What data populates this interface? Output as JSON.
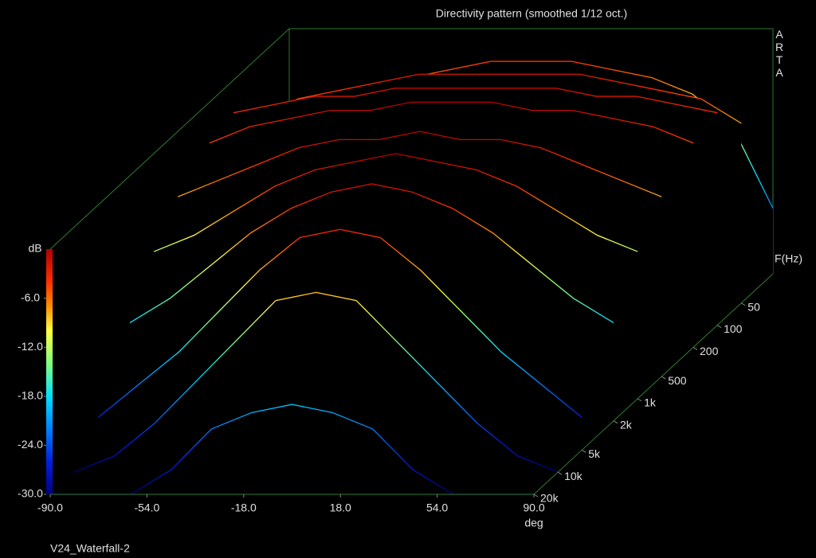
{
  "chart_data": {
    "type": "waterfall",
    "title": "Directivity pattern (smoothed 1/12 oct.)",
    "brand": "ARTA",
    "footer": "V24_Waterfall-2",
    "xlabel": "deg",
    "zlabel": "dB",
    "flabel": "F(Hz)",
    "x": [
      -90,
      -75,
      -60,
      -45,
      -30,
      -15,
      0,
      15,
      30,
      45,
      60,
      75,
      90
    ],
    "xlim": [
      -90,
      90
    ],
    "xticks": [
      {
        "value": -90,
        "label": "-90.0"
      },
      {
        "value": -54,
        "label": "-54.0"
      },
      {
        "value": -18,
        "label": "-18.0"
      },
      {
        "value": 18,
        "label": "18.0"
      },
      {
        "value": 54,
        "label": "54.0"
      },
      {
        "value": 90,
        "label": "90.0"
      }
    ],
    "zlim": [
      -30,
      0
    ],
    "zticks": [
      {
        "value": -6,
        "label": "-6.0"
      },
      {
        "value": -12,
        "label": "-12.0"
      },
      {
        "value": -18,
        "label": "-18.0"
      },
      {
        "value": -24,
        "label": "-24.0"
      },
      {
        "value": -30,
        "label": "-30.0"
      }
    ],
    "flim": [
      20,
      20000
    ],
    "flog": true,
    "fticks": [
      50,
      100,
      200,
      500,
      {
        "value": 1000,
        "label": "1k"
      },
      {
        "value": 2000,
        "label": "2k"
      },
      {
        "value": 5000,
        "label": "5k"
      },
      {
        "value": 10000,
        "label": "10k"
      },
      {
        "value": 20000,
        "label": "20k"
      }
    ],
    "frame_color": "#2e7d32",
    "colormap": [
      {
        "value": 0,
        "color": "#b00000"
      },
      {
        "value": -4,
        "color": "#ff3000"
      },
      {
        "value": -7,
        "color": "#ff9000"
      },
      {
        "value": -10,
        "color": "#ffff40"
      },
      {
        "value": -14,
        "color": "#80ff80"
      },
      {
        "value": -18,
        "color": "#00e0ff"
      },
      {
        "value": -22,
        "color": "#0080ff"
      },
      {
        "value": -26,
        "color": "#0020e0"
      },
      {
        "value": -30,
        "color": "#000080"
      }
    ],
    "series": [
      {
        "name": "20",
        "f": 20,
        "values": [
          -22,
          -12,
          -8,
          -6,
          -5,
          -4,
          -4,
          -4,
          -5,
          -6,
          -8,
          -12,
          -22
        ]
      },
      {
        "name": "50",
        "f": 50,
        "values": [
          -8,
          -5,
          -4,
          -3,
          -2,
          -2,
          -2,
          -2,
          -2,
          -3,
          -4,
          -5,
          -8
        ]
      },
      {
        "name": "100",
        "f": 100,
        "values": [
          -4,
          -3,
          -2,
          -2,
          -1,
          -1,
          -1,
          -1,
          -1,
          -2,
          -2,
          -3,
          -4
        ]
      },
      {
        "name": "200",
        "f": 200,
        "values": [
          -5,
          -3,
          -2,
          -1,
          -1,
          0,
          0,
          0,
          -1,
          -1,
          -2,
          -3,
          -5
        ]
      },
      {
        "name": "500",
        "f": 500,
        "values": [
          -8,
          -6,
          -4,
          -2,
          -1,
          -1,
          0,
          -1,
          -1,
          -2,
          -4,
          -6,
          -8
        ]
      },
      {
        "name": "1000",
        "f": 1000,
        "values": [
          -12,
          -10,
          -7,
          -4,
          -2,
          -1,
          0,
          -1,
          -2,
          -4,
          -7,
          -10,
          -12
        ]
      },
      {
        "name": "2000",
        "f": 2000,
        "values": [
          -18,
          -15,
          -11,
          -7,
          -4,
          -2,
          -1,
          -2,
          -4,
          -7,
          -11,
          -15,
          -18
        ]
      },
      {
        "name": "5000",
        "f": 5000,
        "values": [
          -26,
          -22,
          -18,
          -13,
          -8,
          -4,
          -3,
          -4,
          -8,
          -13,
          -18,
          -22,
          -26
        ]
      },
      {
        "name": "10000",
        "f": 10000,
        "values": [
          -30,
          -28,
          -24,
          -19,
          -14,
          -9,
          -8,
          -9,
          -14,
          -19,
          -24,
          -28,
          -30
        ]
      },
      {
        "name": "20000",
        "f": 20000,
        "values": [
          -30,
          -30,
          -30,
          -27,
          -22,
          -20,
          -19,
          -20,
          -22,
          -27,
          -30,
          -30,
          -30
        ]
      }
    ]
  }
}
